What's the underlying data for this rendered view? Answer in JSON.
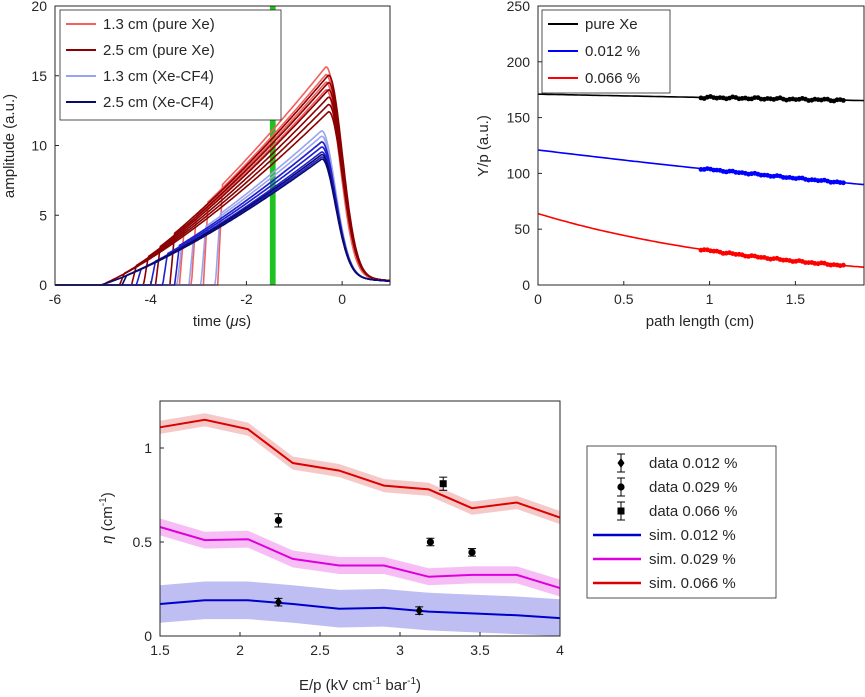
{
  "chart_data": [
    {
      "id": "waveforms",
      "type": "line",
      "xlabel_pre": "time (",
      "xlabel_mu": "μ",
      "xlabel_post": "s)",
      "ylabel": "amplitude (a.u.)",
      "xlim": [
        -6,
        1
      ],
      "ylim": [
        0,
        20
      ],
      "xticks": [
        -6,
        -4,
        -2,
        0
      ],
      "yticks": [
        0,
        5,
        10,
        15,
        20
      ],
      "band": {
        "x": -1.45,
        "width": 0.12,
        "color": "#1fc21f"
      },
      "legend": [
        {
          "label": "1.3 cm (pure Xe)",
          "color": "#f26060"
        },
        {
          "label": "2.5 cm (pure Xe)",
          "color": "#8b0000"
        },
        {
          "label": "1.3 cm (Xe-CF4)",
          "color": "#9aa3ee"
        },
        {
          "label": "2.5 cm (Xe-CF4)",
          "color": "#0a0a6e"
        }
      ],
      "series": [
        {
          "color": "#f26060",
          "starts": [
            -2.6,
            -2.9,
            -3.15,
            -3.4
          ],
          "peak": [
            -0.35,
            15.6
          ]
        },
        {
          "color": "#8b0000",
          "starts": [
            -3.6,
            -3.9,
            -4.15,
            -4.4,
            -4.65,
            -5.0
          ],
          "peak": [
            -0.3,
            15.0
          ]
        },
        {
          "color": "#9aa3ee",
          "starts": [
            -2.65,
            -2.95,
            -3.2,
            -3.45
          ],
          "peak": [
            -0.45,
            11.0
          ]
        },
        {
          "color": "#2020cc",
          "starts": [
            -3.5,
            -3.75,
            -4.0,
            -4.3
          ],
          "peak": [
            -0.45,
            10.2
          ]
        },
        {
          "color": "#0a0a6e",
          "starts": [
            -4.6,
            -5.05
          ],
          "peak": [
            -0.45,
            9.3
          ]
        }
      ]
    },
    {
      "id": "yield_vs_path",
      "type": "scatter",
      "xlabel": "path length (cm)",
      "ylabel": "Y/p (a.u.)",
      "xlim": [
        0,
        1.9
      ],
      "ylim": [
        0,
        250
      ],
      "xticks": [
        0,
        0.5,
        1,
        1.5
      ],
      "yticks": [
        0,
        50,
        100,
        150,
        200,
        250
      ],
      "legend": [
        {
          "label": "pure Xe",
          "color": "#000000"
        },
        {
          "label": "0.012 %",
          "color": "#0000ff"
        },
        {
          "label": "0.066 %",
          "color": "#ff0000"
        }
      ],
      "series": [
        {
          "name": "pure Xe",
          "color": "#000000",
          "fit_y0": 171,
          "fit_k": 0.018,
          "data_x": [
            0.95,
            1.78
          ],
          "data_offset": 0
        },
        {
          "name": "0.012 %",
          "color": "#0000ff",
          "fit_y0": 121,
          "fit_k": 0.156,
          "data_x": [
            0.95,
            1.78
          ],
          "data_offset": 1
        },
        {
          "name": "0.066 %",
          "color": "#ff0000",
          "fit_y0": 64,
          "fit_k": 0.73,
          "data_x": [
            0.95,
            1.78
          ],
          "data_offset": 2
        }
      ]
    },
    {
      "id": "eta_vs_field",
      "type": "line",
      "xlabel": "E/p (kV cm",
      "xlabel_sup1": "-1",
      "xlabel_mid": " bar",
      "xlabel_sup2": "-1",
      "xlabel_end": ")",
      "ylabel_eta": "η",
      "ylabel_unit": " (cm",
      "ylabel_sup": "-1",
      "ylabel_end": ")",
      "xlim": [
        1.5,
        4
      ],
      "ylim": [
        0,
        1.25
      ],
      "xticks": [
        1.5,
        2,
        2.5,
        3,
        3.5,
        4
      ],
      "yticks": [
        0,
        0.5,
        1
      ],
      "legend": [
        {
          "label": "data 0.012 %",
          "marker": "diamond",
          "color": "#000000"
        },
        {
          "label": "data 0.029 %",
          "marker": "circle",
          "color": "#000000"
        },
        {
          "label": "data 0.066 %",
          "marker": "square",
          "color": "#000000"
        },
        {
          "label": "sim. 0.012 %",
          "color": "#0000cc"
        },
        {
          "label": "sim. 0.029 %",
          "color": "#dd00dd"
        },
        {
          "label": "sim. 0.066 %",
          "color": "#dd0000"
        }
      ],
      "sim_x": [
        1.5,
        1.78,
        2.05,
        2.33,
        2.62,
        2.9,
        3.18,
        3.45,
        3.73,
        4.0
      ],
      "sim": [
        {
          "name": "sim. 0.012 %",
          "color": "#0000cc",
          "band_color": "#b3b3f0",
          "band": 0.1,
          "y": [
            0.17,
            0.19,
            0.19,
            0.17,
            0.145,
            0.15,
            0.13,
            0.12,
            0.11,
            0.095
          ]
        },
        {
          "name": "sim. 0.029 %",
          "color": "#dd00dd",
          "band_color": "#f5b3f2",
          "band": 0.045,
          "y": [
            0.58,
            0.51,
            0.515,
            0.41,
            0.375,
            0.375,
            0.315,
            0.325,
            0.325,
            0.255
          ]
        },
        {
          "name": "sim. 0.066 %",
          "color": "#dd0000",
          "band_color": "#f5c0c0",
          "band": 0.035,
          "y": [
            1.11,
            1.15,
            1.1,
            0.92,
            0.88,
            0.8,
            0.78,
            0.68,
            0.71,
            0.63
          ]
        }
      ],
      "data_points": [
        {
          "set": "0.012 %",
          "marker": "diamond",
          "x": 2.24,
          "y": 0.18,
          "err": 0.02
        },
        {
          "set": "0.012 %",
          "marker": "diamond",
          "x": 3.12,
          "y": 0.135,
          "err": 0.02
        },
        {
          "set": "0.029 %",
          "marker": "circle",
          "x": 2.24,
          "y": 0.615,
          "err": 0.035
        },
        {
          "set": "0.029 %",
          "marker": "circle",
          "x": 3.19,
          "y": 0.5,
          "err": 0.02
        },
        {
          "set": "0.029 %",
          "marker": "circle",
          "x": 3.45,
          "y": 0.445,
          "err": 0.02
        },
        {
          "set": "0.066 %",
          "marker": "square",
          "x": 3.27,
          "y": 0.81,
          "err": 0.035
        }
      ]
    }
  ]
}
